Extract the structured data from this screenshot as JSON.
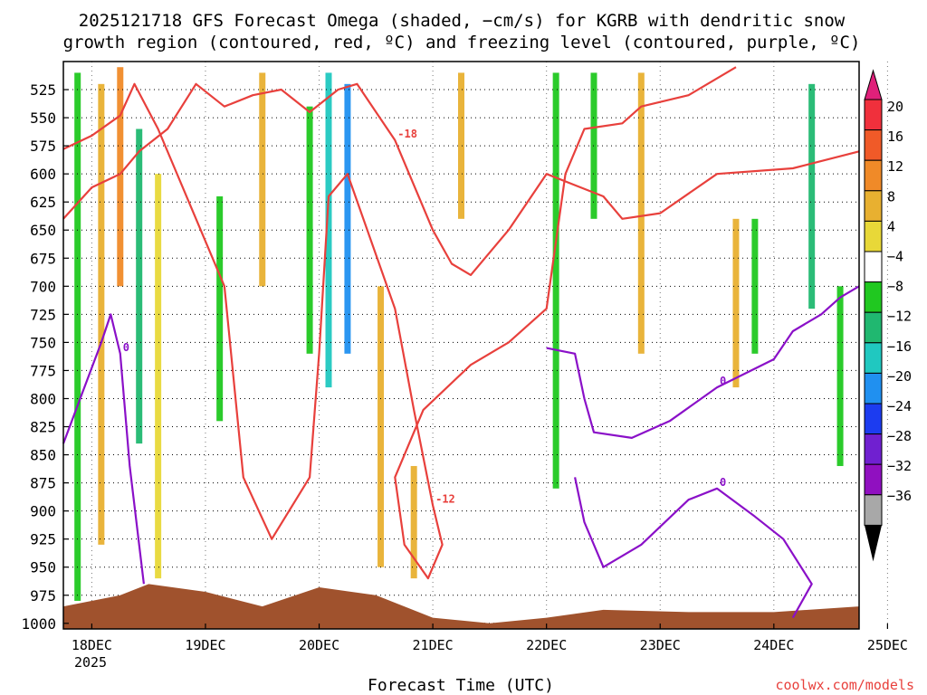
{
  "chart_data": {
    "type": "heatmap",
    "title_line1": "2025121718 GFS Forecast Omega (shaded, −cm/s) for KGRB with dendritic snow",
    "title_line2": "growth region (contoured, red, ºC) and freezing level (contoured, purple, ºC)",
    "xlabel": "Forecast Time (UTC)",
    "credit": "coolwx.com/models",
    "x_ticks": [
      "18DEC",
      "19DEC",
      "20DEC",
      "21DEC",
      "22DEC",
      "23DEC",
      "24DEC",
      "25DEC"
    ],
    "x_year": "2025",
    "x_start_hour": 18,
    "x_end_hour": 186,
    "y_ticks": [
      525,
      550,
      575,
      600,
      625,
      650,
      675,
      700,
      725,
      750,
      775,
      800,
      825,
      850,
      875,
      900,
      925,
      950,
      975,
      1000
    ],
    "ylim": [
      500,
      1005
    ],
    "colorbar": {
      "labels": [
        "20",
        "16",
        "12",
        "8",
        "4",
        "−4",
        "−8",
        "−12",
        "−16",
        "−20",
        "−24",
        "−28",
        "−32",
        "−36"
      ],
      "levels": [
        20,
        16,
        12,
        8,
        4,
        -4,
        -8,
        -12,
        -16,
        -20,
        -24,
        -28,
        -32,
        -36
      ],
      "colors": [
        "#f0303c",
        "#f05a28",
        "#f08a28",
        "#e8b030",
        "#e8d838",
        "#ffffff",
        "#20c820",
        "#20b870",
        "#20c8c0",
        "#2090f0",
        "#1c3cf0",
        "#7020d0",
        "#9010c0",
        "#a8a8a8"
      ],
      "top_color": "#e0207a",
      "bottom_color": "#000000"
    },
    "omega_regions": [
      {
        "hour": 21,
        "p_top": 510,
        "p_bot": 980,
        "value": -8
      },
      {
        "hour": 26,
        "p_top": 520,
        "p_bot": 930,
        "value": 6
      },
      {
        "hour": 30,
        "p_top": 505,
        "p_bot": 700,
        "value": 12
      },
      {
        "hour": 34,
        "p_top": 560,
        "p_bot": 840,
        "value": -14
      },
      {
        "hour": 38,
        "p_top": 600,
        "p_bot": 960,
        "value": 4
      },
      {
        "hour": 51,
        "p_top": 620,
        "p_bot": 820,
        "value": -8
      },
      {
        "hour": 60,
        "p_top": 510,
        "p_bot": 700,
        "value": 5
      },
      {
        "hour": 70,
        "p_top": 540,
        "p_bot": 760,
        "value": -8
      },
      {
        "hour": 74,
        "p_top": 510,
        "p_bot": 790,
        "value": -18
      },
      {
        "hour": 78,
        "p_top": 520,
        "p_bot": 760,
        "value": -22
      },
      {
        "hour": 85,
        "p_top": 700,
        "p_bot": 950,
        "value": 6
      },
      {
        "hour": 92,
        "p_top": 860,
        "p_bot": 960,
        "value": 5
      },
      {
        "hour": 102,
        "p_top": 510,
        "p_bot": 640,
        "value": 5
      },
      {
        "hour": 122,
        "p_top": 510,
        "p_bot": 880,
        "value": -8
      },
      {
        "hour": 130,
        "p_top": 510,
        "p_bot": 640,
        "value": -9
      },
      {
        "hour": 140,
        "p_top": 510,
        "p_bot": 760,
        "value": 5
      },
      {
        "hour": 160,
        "p_top": 640,
        "p_bot": 790,
        "value": 5
      },
      {
        "hour": 164,
        "p_top": 640,
        "p_bot": 760,
        "value": -8
      },
      {
        "hour": 176,
        "p_top": 520,
        "p_bot": 720,
        "value": -14
      },
      {
        "hour": 182,
        "p_top": 700,
        "p_bot": 860,
        "value": -8
      }
    ],
    "dgz_contours": [
      {
        "value": "-12",
        "points": [
          [
            18,
            578
          ],
          [
            24,
            566
          ],
          [
            30,
            548
          ],
          [
            33,
            520
          ],
          [
            38,
            560
          ],
          [
            46,
            640
          ],
          [
            52,
            700
          ],
          [
            56,
            870
          ],
          [
            62,
            925
          ],
          [
            70,
            870
          ],
          [
            72,
            760
          ],
          [
            74,
            620
          ],
          [
            78,
            600
          ],
          [
            88,
            720
          ],
          [
            92,
            810
          ],
          [
            96,
            895
          ],
          [
            98,
            930
          ],
          [
            95,
            960
          ],
          [
            90,
            930
          ],
          [
            88,
            870
          ],
          [
            94,
            810
          ],
          [
            104,
            770
          ],
          [
            112,
            750
          ],
          [
            120,
            720
          ],
          [
            124,
            600
          ],
          [
            128,
            560
          ],
          [
            136,
            555
          ],
          [
            140,
            540
          ],
          [
            150,
            530
          ],
          [
            160,
            505
          ]
        ]
      },
      {
        "value": "-18",
        "points": [
          [
            18,
            640
          ],
          [
            24,
            612
          ],
          [
            30,
            600
          ],
          [
            34,
            580
          ],
          [
            40,
            560
          ],
          [
            46,
            520
          ],
          [
            52,
            540
          ],
          [
            58,
            530
          ],
          [
            64,
            525
          ],
          [
            70,
            545
          ],
          [
            76,
            525
          ],
          [
            80,
            520
          ],
          [
            88,
            570
          ],
          [
            96,
            650
          ],
          [
            100,
            680
          ],
          [
            104,
            690
          ],
          [
            112,
            650
          ],
          [
            120,
            600
          ],
          [
            126,
            610
          ],
          [
            132,
            620
          ],
          [
            136,
            640
          ],
          [
            144,
            635
          ],
          [
            156,
            600
          ],
          [
            172,
            595
          ],
          [
            186,
            580
          ]
        ]
      }
    ],
    "freezing_contours": [
      {
        "value": "0",
        "points": [
          [
            18,
            840
          ],
          [
            22,
            795
          ],
          [
            26,
            750
          ],
          [
            28,
            725
          ],
          [
            30,
            760
          ],
          [
            32,
            860
          ],
          [
            34,
            930
          ],
          [
            35,
            965
          ]
        ]
      },
      {
        "value": "0",
        "points": [
          [
            120,
            755
          ],
          [
            126,
            760
          ],
          [
            128,
            800
          ],
          [
            130,
            830
          ],
          [
            138,
            835
          ],
          [
            146,
            820
          ],
          [
            156,
            790
          ],
          [
            168,
            765
          ],
          [
            172,
            740
          ],
          [
            178,
            725
          ],
          [
            182,
            710
          ],
          [
            186,
            700
          ]
        ]
      },
      {
        "value": "0",
        "points": [
          [
            126,
            870
          ],
          [
            128,
            910
          ],
          [
            132,
            950
          ],
          [
            140,
            930
          ],
          [
            150,
            890
          ],
          [
            156,
            880
          ],
          [
            164,
            905
          ],
          [
            170,
            925
          ],
          [
            176,
            965
          ],
          [
            172,
            995
          ]
        ]
      }
    ],
    "terrain_pressure": [
      [
        18,
        985
      ],
      [
        30,
        975
      ],
      [
        36,
        965
      ],
      [
        48,
        972
      ],
      [
        60,
        985
      ],
      [
        72,
        968
      ],
      [
        84,
        975
      ],
      [
        96,
        995
      ],
      [
        108,
        1000
      ],
      [
        120,
        995
      ],
      [
        132,
        988
      ],
      [
        150,
        990
      ],
      [
        168,
        990
      ],
      [
        186,
        985
      ]
    ]
  }
}
